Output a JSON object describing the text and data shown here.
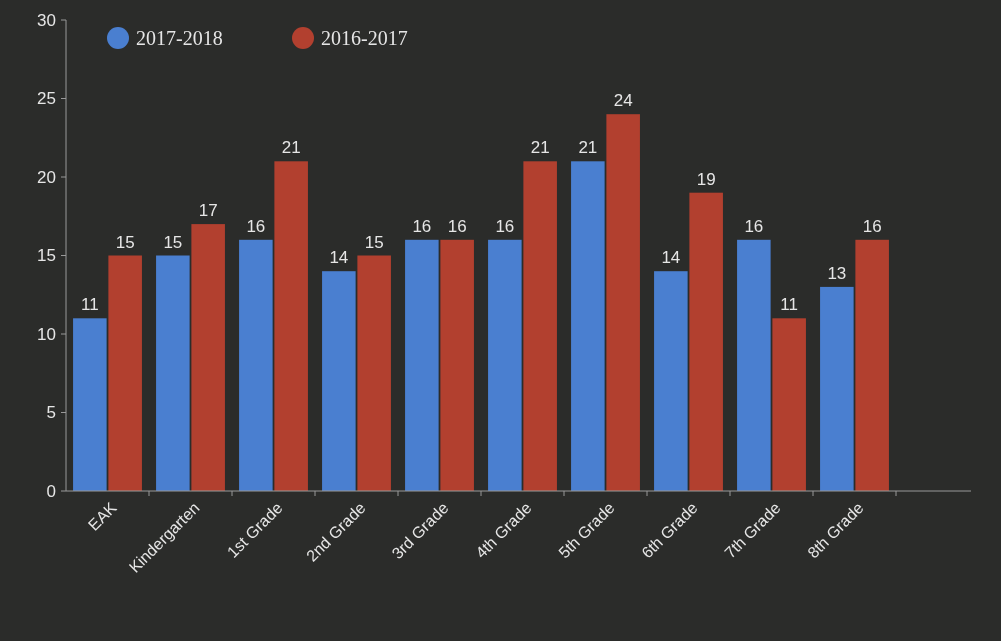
{
  "chart_data": {
    "type": "bar",
    "categories": [
      "EAK",
      "Kindergarten",
      "1st Grade",
      "2nd Grade",
      "3rd Grade",
      "4th Grade",
      "5th Grade",
      "6th Grade",
      "7th Grade",
      "8th Grade"
    ],
    "series": [
      {
        "name": "2017-2018",
        "color": "#4a7fd0",
        "values": [
          11,
          15,
          16,
          14,
          16,
          16,
          21,
          14,
          16,
          13
        ]
      },
      {
        "name": "2016-2017",
        "color": "#b2402f",
        "values": [
          15,
          17,
          21,
          15,
          16,
          21,
          24,
          19,
          11,
          16
        ]
      }
    ],
    "ylim": [
      0,
      30
    ],
    "yticks": [
      0,
      5,
      10,
      15,
      20,
      25,
      30
    ],
    "data_labels": true,
    "legend": "top left"
  }
}
